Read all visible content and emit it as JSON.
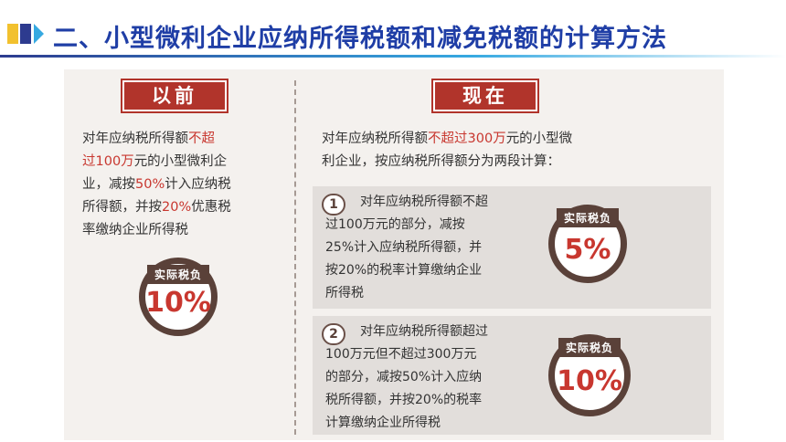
{
  "header": {
    "title": "二、小型微利企业应纳所得税额和减免税额的计算方法",
    "deco_colors": [
      "#f2c12e",
      "#2d3b8f",
      "#36a9e1"
    ],
    "title_color": "#1f3ea6"
  },
  "before": {
    "label": "以前",
    "desc_lines": [
      [
        {
          "t": "对年应纳税所得额",
          "hl": false
        },
        {
          "t": "不超",
          "hl": true
        }
      ],
      [
        {
          "t": "过100万",
          "hl": true
        },
        {
          "t": "元的小型微利企",
          "hl": false
        }
      ],
      [
        {
          "t": "业，减按",
          "hl": false
        },
        {
          "t": "50%",
          "hl": true
        },
        {
          "t": "计入应纳税",
          "hl": false
        }
      ],
      [
        {
          "t": "所得额，并按",
          "hl": false
        },
        {
          "t": "20%",
          "hl": true
        },
        {
          "t": "优惠税",
          "hl": false
        }
      ],
      [
        {
          "t": "率缴纳企业所得税",
          "hl": false
        }
      ]
    ],
    "badge_label": "实际税负",
    "badge_value": "10%"
  },
  "now": {
    "label": "现在",
    "intro_lines": [
      [
        {
          "t": "对年应纳税所得额",
          "hl": false
        },
        {
          "t": "不超过300万",
          "hl": true
        },
        {
          "t": "元的小型微",
          "hl": false
        }
      ],
      [
        {
          "t": "利企业，按应纳税所得额分为两段计算：",
          "hl": false
        }
      ]
    ],
    "tiers": [
      {
        "number": "1",
        "lines": [
          "对年应纳税所得额不超",
          "过100万元的部分，减按",
          "25%计入应纳税所得额，并",
          "按20%的税率计算缴纳企业",
          "所得税"
        ],
        "badge_label": "实际税负",
        "badge_value": "5%"
      },
      {
        "number": "2",
        "lines": [
          "对年应纳税所得额超过",
          "100万元但不超过300万元",
          "的部分，减按50%计入应纳",
          "税所得额，并按20%的税率",
          "计算缴纳企业所得税"
        ],
        "badge_label": "实际税负",
        "badge_value": "10%"
      }
    ]
  },
  "colors": {
    "accent_red": "#b1342b",
    "highlight_red": "#c8372f",
    "badge_brown": "#5a4139",
    "panel_bg": "#f4f1ee"
  }
}
